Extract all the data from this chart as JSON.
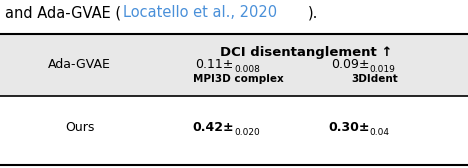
{
  "title": "DCI disentanglement ↑",
  "col1_header": "MPI3D complex",
  "col2_header": "3DIdent",
  "row1_label": "Ada-GVAE",
  "row2_label": "Ours",
  "row1_col1_main": "0.11",
  "row1_col1_pm": "±",
  "row1_col1_sub": "0.008",
  "row1_col2_main": "0.09",
  "row1_col2_pm": "±",
  "row1_col2_sub": "0.019",
  "row2_col1_main": "0.42",
  "row2_col1_pm": "±",
  "row2_col1_sub": "0.020",
  "row2_col2_main": "0.30",
  "row2_col2_pm": "±",
  "row2_col2_sub": "0.04",
  "header_bg": "#e8e8e8",
  "table_bg": "#ffffff",
  "text_color": "#000000",
  "link_color": "#4a90d9"
}
